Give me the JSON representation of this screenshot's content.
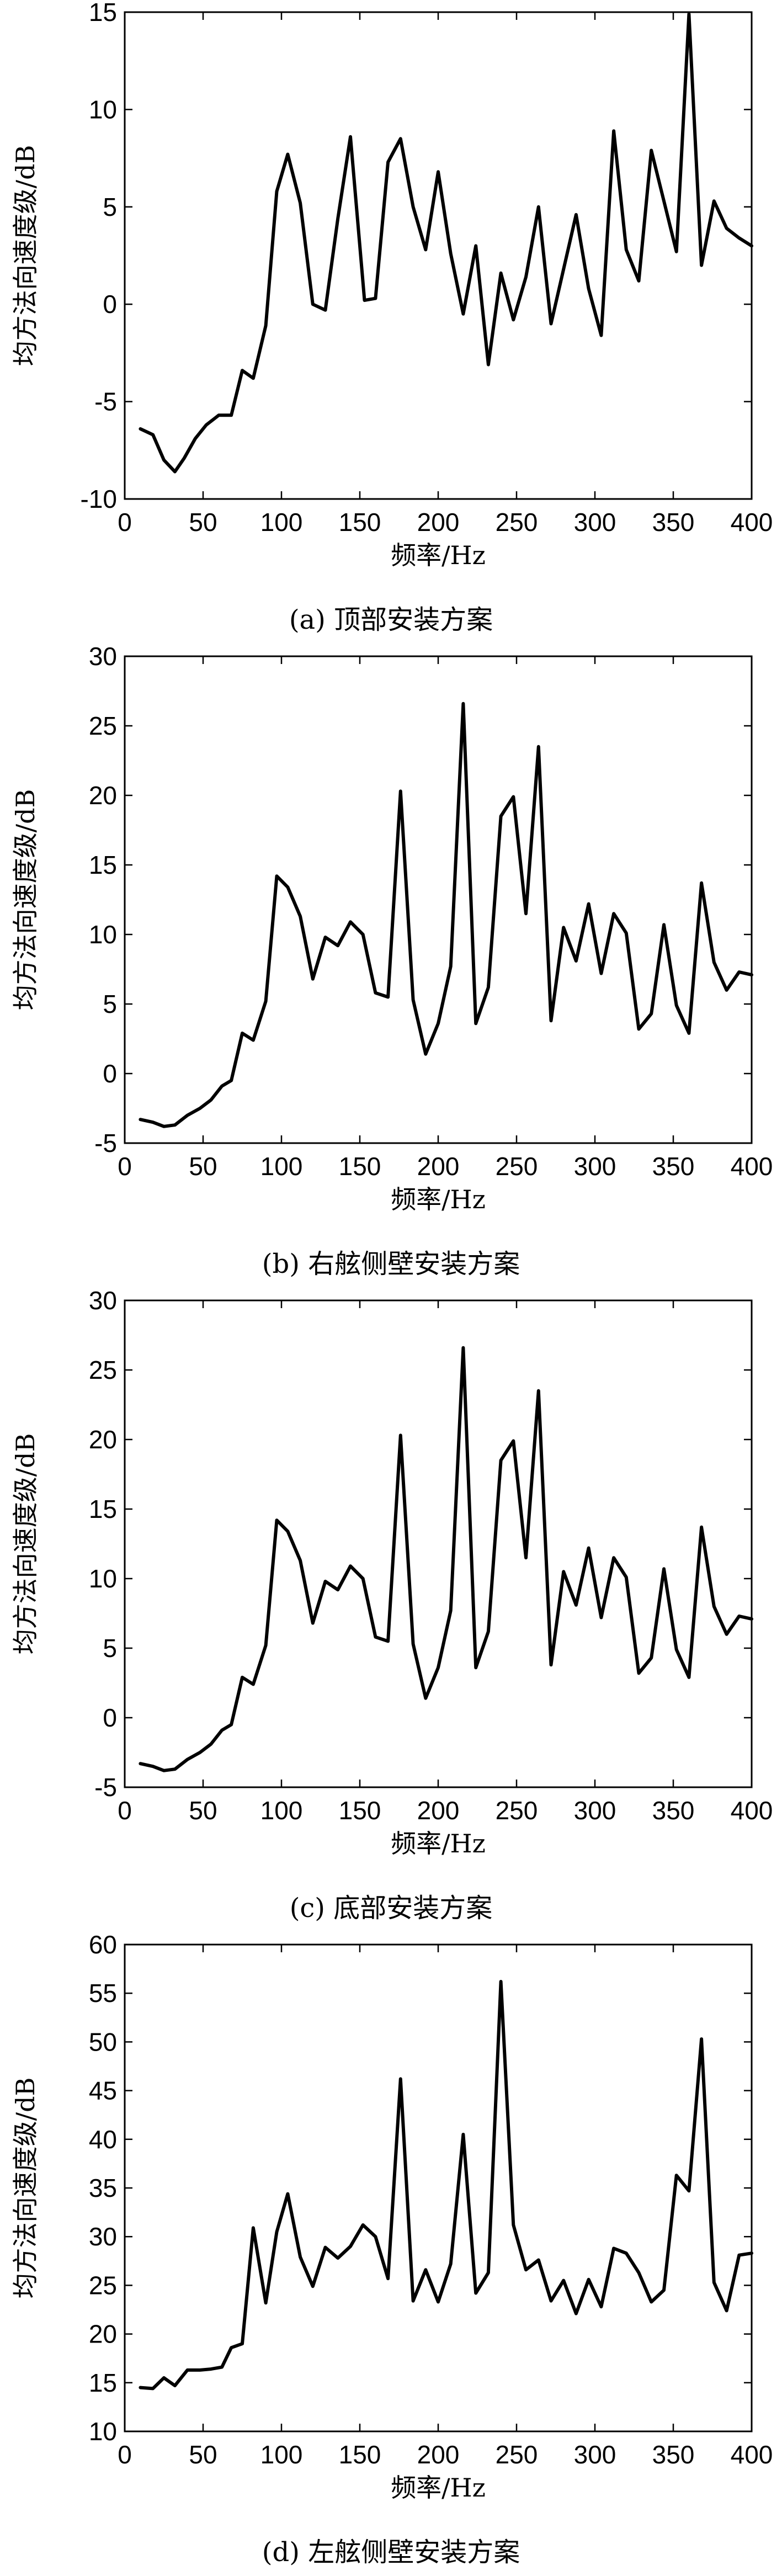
{
  "chart_data": [
    {
      "type": "line",
      "caption": "(a) 顶部安装方案",
      "xlabel": "频率/Hz",
      "ylabel": "均方法向速度级/dB",
      "xlim": [
        0,
        400
      ],
      "ylim": [
        -10,
        15
      ],
      "xticks": [
        0,
        50,
        100,
        150,
        200,
        250,
        300,
        350,
        400
      ],
      "yticks": [
        -10,
        -5,
        0,
        5,
        10,
        15
      ],
      "grid": false,
      "x": [
        10,
        18,
        25,
        32,
        38,
        45,
        52,
        60,
        68,
        75,
        82,
        90,
        97,
        104,
        112,
        120,
        128,
        136,
        144,
        153,
        160,
        168,
        176,
        184,
        192,
        200,
        208,
        216,
        224,
        232,
        240,
        248,
        256,
        264,
        272,
        280,
        288,
        296,
        304,
        312,
        320,
        328,
        336,
        344,
        352,
        360,
        368,
        376,
        384,
        392,
        400
      ],
      "values": [
        -6.4,
        -6.7,
        -8.0,
        -8.6,
        -7.9,
        -6.9,
        -6.2,
        -5.7,
        -5.7,
        -3.4,
        -3.8,
        -1.1,
        5.8,
        7.7,
        5.2,
        0.0,
        -0.3,
        4.4,
        8.6,
        0.2,
        0.3,
        7.3,
        8.5,
        5.0,
        2.8,
        6.8,
        2.6,
        -0.5,
        3.0,
        -3.1,
        1.6,
        -0.8,
        1.4,
        5.0,
        -1.0,
        1.8,
        4.6,
        0.8,
        -1.6,
        8.9,
        2.8,
        1.2,
        7.9,
        5.3,
        2.7,
        14.9,
        2.0,
        5.3,
        3.9,
        3.4,
        3.0
      ]
    },
    {
      "type": "line",
      "caption": "(b) 右舷侧壁安装方案",
      "xlabel": "频率/Hz",
      "ylabel": "均方法向速度级/dB",
      "xlim": [
        0,
        400
      ],
      "ylim": [
        -5,
        30
      ],
      "xticks": [
        0,
        50,
        100,
        150,
        200,
        250,
        300,
        350,
        400
      ],
      "yticks": [
        -5,
        0,
        5,
        10,
        15,
        20,
        25,
        30
      ],
      "grid": false,
      "x": [
        10,
        18,
        25,
        32,
        40,
        48,
        55,
        62,
        68,
        75,
        82,
        90,
        97,
        104,
        112,
        120,
        128,
        136,
        144,
        152,
        160,
        168,
        176,
        184,
        192,
        200,
        208,
        216,
        224,
        232,
        240,
        248,
        256,
        264,
        272,
        280,
        288,
        296,
        304,
        312,
        320,
        328,
        336,
        344,
        352,
        360,
        368,
        376,
        384,
        392,
        400
      ],
      "values": [
        -3.3,
        -3.5,
        -3.8,
        -3.7,
        -3.0,
        -2.5,
        -1.9,
        -0.9,
        -0.5,
        2.9,
        2.4,
        5.2,
        14.2,
        13.4,
        11.3,
        6.8,
        9.8,
        9.2,
        10.9,
        10.0,
        5.8,
        5.5,
        20.3,
        5.3,
        1.4,
        3.6,
        7.7,
        26.6,
        3.6,
        6.2,
        18.5,
        19.9,
        11.5,
        23.5,
        3.8,
        10.5,
        8.1,
        12.2,
        7.2,
        11.5,
        10.1,
        3.2,
        4.3,
        10.7,
        4.9,
        2.9,
        13.7,
        8.0,
        6.0,
        7.3,
        7.1
      ]
    },
    {
      "type": "line",
      "caption": "(c) 底部安装方案",
      "xlabel": "频率/Hz",
      "ylabel": "均方法向速度级/dB",
      "xlim": [
        0,
        400
      ],
      "ylim": [
        -5,
        30
      ],
      "xticks": [
        0,
        50,
        100,
        150,
        200,
        250,
        300,
        350,
        400
      ],
      "yticks": [
        -5,
        0,
        5,
        10,
        15,
        20,
        25,
        30
      ],
      "grid": false,
      "x": [
        10,
        18,
        25,
        32,
        40,
        48,
        55,
        62,
        68,
        75,
        82,
        90,
        97,
        104,
        112,
        120,
        128,
        136,
        144,
        152,
        160,
        168,
        176,
        184,
        192,
        200,
        208,
        216,
        224,
        232,
        240,
        248,
        256,
        264,
        272,
        280,
        288,
        296,
        304,
        312,
        320,
        328,
        336,
        344,
        352,
        360,
        368,
        376,
        384,
        392,
        400
      ],
      "values": [
        -3.3,
        -3.5,
        -3.8,
        -3.7,
        -3.0,
        -2.5,
        -1.9,
        -0.9,
        -0.5,
        2.9,
        2.4,
        5.2,
        14.2,
        13.4,
        11.3,
        6.8,
        9.8,
        9.2,
        10.9,
        10.0,
        5.8,
        5.5,
        20.3,
        5.3,
        1.4,
        3.6,
        7.7,
        26.6,
        3.6,
        6.2,
        18.5,
        19.9,
        11.5,
        23.5,
        3.8,
        10.5,
        8.1,
        12.2,
        7.2,
        11.5,
        10.1,
        3.2,
        4.3,
        10.7,
        4.9,
        2.9,
        13.7,
        8.0,
        6.0,
        7.3,
        7.1
      ]
    },
    {
      "type": "line",
      "caption": "(d) 左舷侧壁安装方案",
      "xlabel": "频率/Hz",
      "ylabel": "均方法向速度级/dB",
      "xlim": [
        0,
        400
      ],
      "ylim": [
        10,
        60
      ],
      "xticks": [
        0,
        50,
        100,
        150,
        200,
        250,
        300,
        350,
        400
      ],
      "yticks": [
        10,
        15,
        20,
        25,
        30,
        35,
        40,
        45,
        50,
        55,
        60
      ],
      "grid": false,
      "x": [
        10,
        18,
        25,
        32,
        40,
        48,
        55,
        62,
        68,
        75,
        82,
        90,
        97,
        104,
        112,
        120,
        128,
        136,
        144,
        152,
        160,
        168,
        176,
        184,
        192,
        200,
        208,
        216,
        224,
        232,
        240,
        248,
        256,
        264,
        272,
        280,
        288,
        296,
        304,
        312,
        320,
        328,
        336,
        344,
        352,
        360,
        368,
        376,
        384,
        392,
        400
      ],
      "values": [
        14.5,
        14.4,
        15.5,
        14.7,
        16.3,
        16.3,
        16.4,
        16.6,
        18.6,
        19.0,
        30.9,
        23.2,
        30.5,
        34.4,
        27.9,
        24.9,
        28.9,
        27.8,
        29.0,
        31.2,
        30.0,
        25.7,
        46.2,
        23.4,
        26.6,
        23.3,
        27.2,
        40.5,
        24.2,
        26.3,
        56.2,
        31.2,
        26.6,
        27.6,
        23.4,
        25.5,
        22.1,
        25.6,
        22.8,
        28.8,
        28.3,
        26.3,
        23.3,
        24.5,
        36.3,
        34.7,
        50.3,
        25.3,
        22.4,
        28.1,
        28.3
      ]
    }
  ]
}
